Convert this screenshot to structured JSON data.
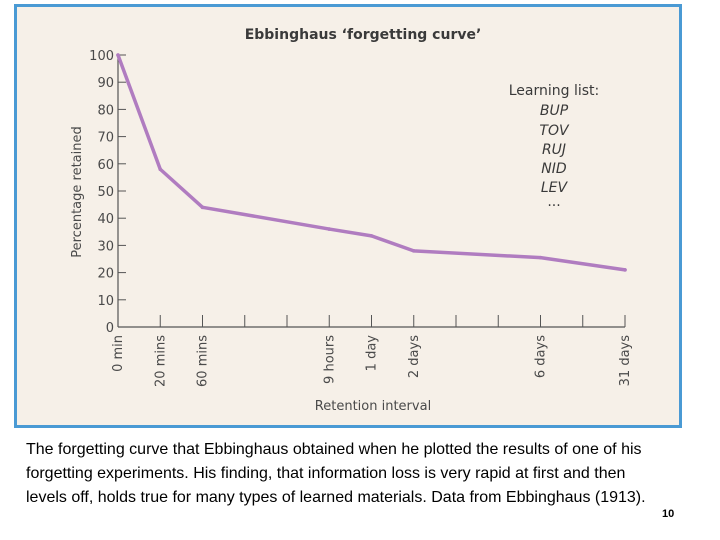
{
  "chart_data": {
    "type": "line",
    "title": "Ebbinghaus ‘forgetting curve’",
    "xlabel": "Retention interval",
    "ylabel": "Percentage retained",
    "ylim": [
      0,
      100
    ],
    "yticks": [
      0,
      10,
      20,
      30,
      40,
      50,
      60,
      70,
      80,
      90,
      100
    ],
    "x_tick_count": 12,
    "points": [
      {
        "label": "0 min",
        "tick": 0,
        "value": 100
      },
      {
        "label": "20 mins",
        "tick": 1,
        "value": 58
      },
      {
        "label": "60 mins",
        "tick": 2,
        "value": 44
      },
      {
        "label": "9 hours",
        "tick": 5,
        "value": 36
      },
      {
        "label": "1 day",
        "tick": 6,
        "value": 33.5
      },
      {
        "label": "2 days",
        "tick": 7,
        "value": 28
      },
      {
        "label": "6 days",
        "tick": 10,
        "value": 25.5
      },
      {
        "label": "31 days",
        "tick": 12,
        "value": 21
      }
    ],
    "line_color": "#b07cc0",
    "legend": {
      "title": "Learning list:",
      "items": [
        "BUP",
        "TOV",
        "RUJ",
        "NID",
        "LEV",
        "..."
      ],
      "position": "top-right"
    }
  },
  "caption": "The forgetting curve that Ebbinghaus obtained when he plotted the results of one of his forgetting experiments. His finding, that information loss is very rapid at first and then levels off, holds true for many types of learned materials. Data from Ebbinghaus (1913).",
  "page_number": "10",
  "colors": {
    "frame_border": "#4a9ad4",
    "background": "#f6f0e8",
    "axis": "#555555"
  }
}
